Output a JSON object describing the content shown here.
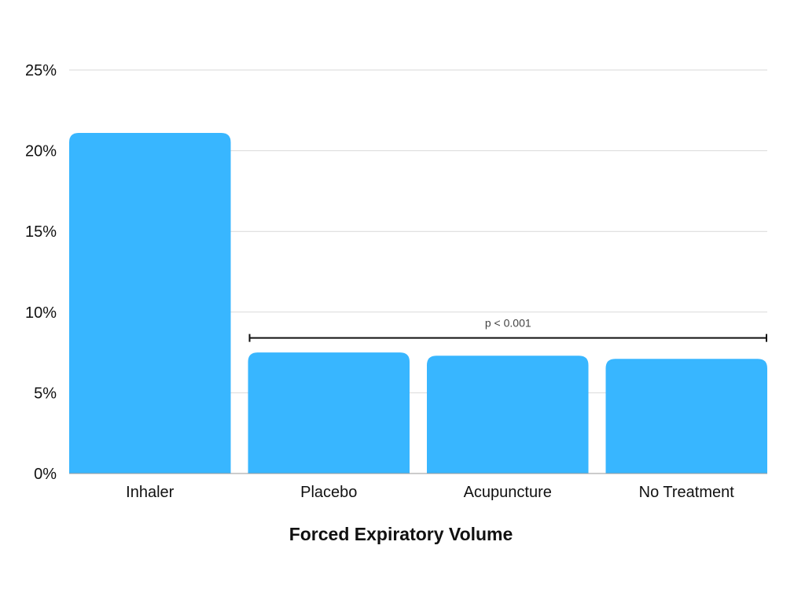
{
  "chart_data": {
    "type": "bar",
    "title": "",
    "xlabel": "Forced Expiratory Volume",
    "ylabel": "",
    "categories": [
      "Inhaler",
      "Placebo",
      "Acupuncture",
      "No Treatment"
    ],
    "values": [
      21.1,
      7.5,
      7.3,
      7.1
    ],
    "ylim": [
      0,
      25
    ],
    "y_ticks": [
      0,
      5,
      10,
      15,
      20,
      25
    ],
    "y_tick_labels": [
      "0%",
      "5%",
      "10%",
      "15%",
      "20%",
      "25%"
    ],
    "grid": true,
    "legend": "none",
    "bar_color": "#38b6ff",
    "annotations": [
      {
        "text": "p < 0.001",
        "from_category": "Placebo",
        "to_category": "No Treatment",
        "y": 8.4
      }
    ]
  }
}
